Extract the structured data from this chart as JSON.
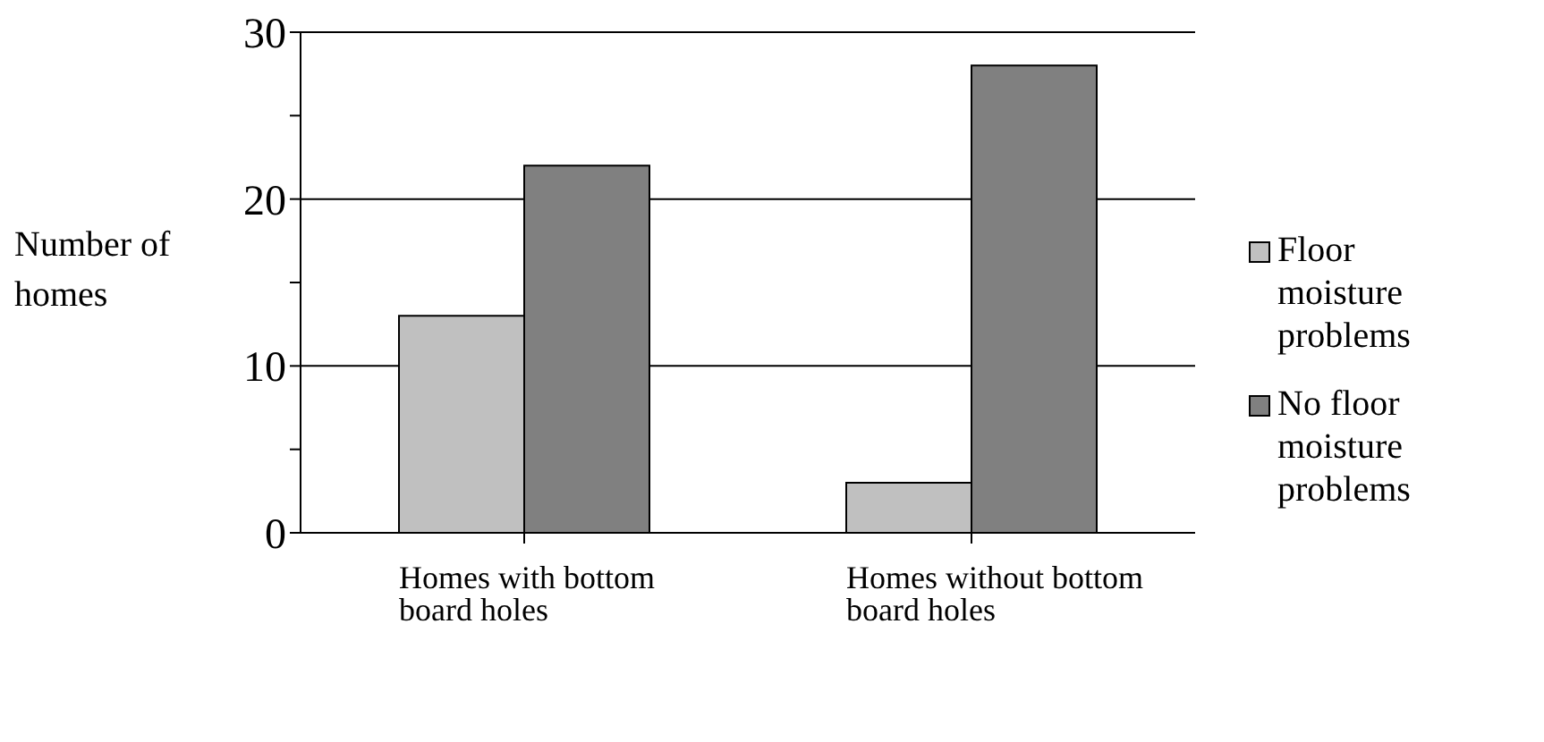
{
  "chart_data": {
    "type": "bar",
    "ylabel": "Number of homes",
    "categories": [
      "Homes with bottom board holes",
      "Homes without bottom board holes"
    ],
    "series": [
      {
        "name": "Floor moisture problems",
        "color": "#c0c0c0",
        "values": [
          13,
          3
        ]
      },
      {
        "name": "No floor moisture problems",
        "color": "#808080",
        "values": [
          22,
          28
        ]
      }
    ],
    "ylim": [
      0,
      30
    ],
    "yticks": [
      0,
      {
        "value": 5,
        "label": null
      },
      10,
      {
        "value": 15,
        "label": null
      },
      20,
      {
        "value": 25,
        "label": null
      },
      30
    ],
    "grid": "y",
    "legend": "right"
  }
}
